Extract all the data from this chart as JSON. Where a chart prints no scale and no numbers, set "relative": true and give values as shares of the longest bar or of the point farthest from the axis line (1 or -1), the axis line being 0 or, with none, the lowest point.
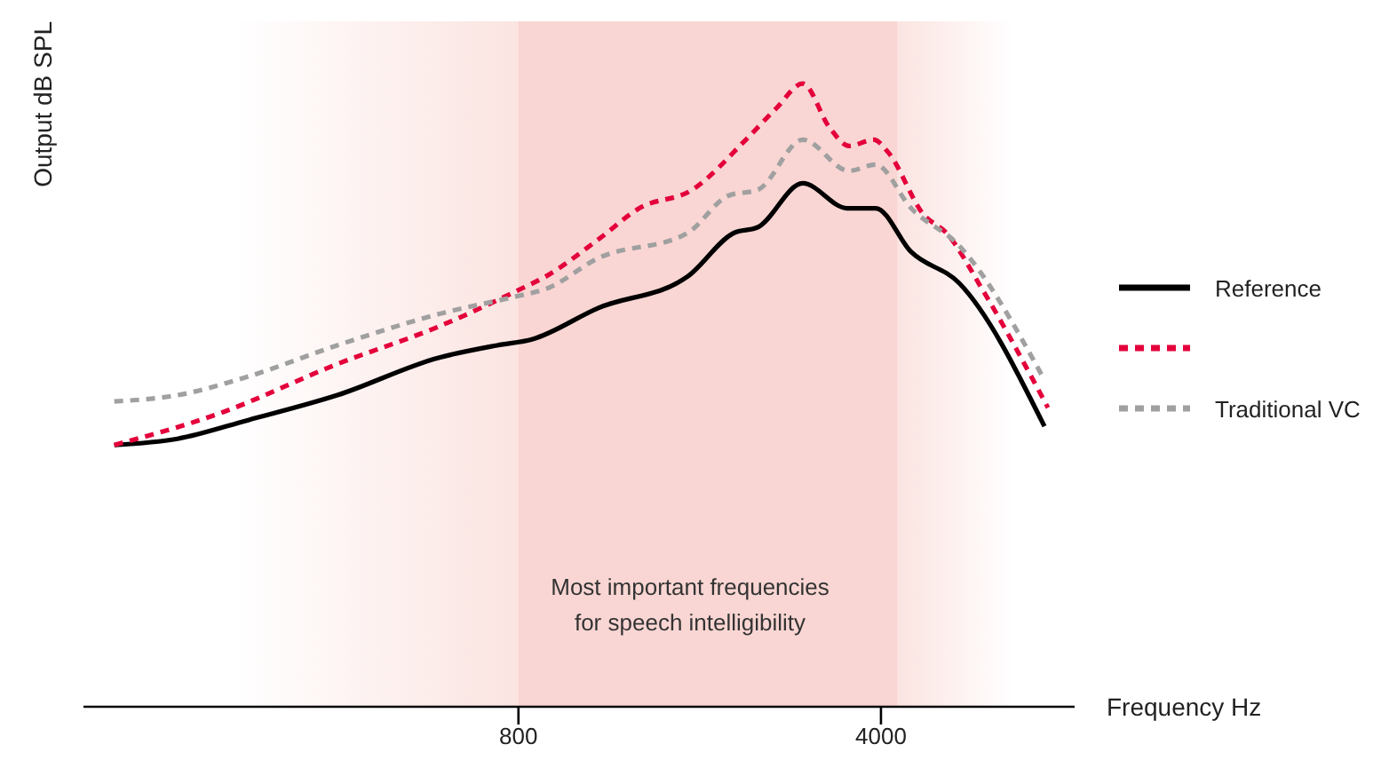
{
  "chart_data": {
    "type": "line",
    "xlabel": "Frequency Hz",
    "ylabel": "Output dB SPL",
    "relative": true,
    "log": "x",
    "xlim": [
      116,
      9450
    ],
    "xticks": [
      800,
      4000
    ],
    "legend": "right",
    "bands": [
      {
        "axis": "x",
        "from": 226,
        "to": 7200,
        "color": "#fbe4e1"
      },
      {
        "axis": "x",
        "from": 800,
        "to": 4300,
        "label": "Most important frequencies for speech intelligibility",
        "color": "#f9d6d3"
      }
    ],
    "series": [
      {
        "name": "Reference",
        "color": "#000000",
        "line_style": "solid",
        "x": [
          133,
          176,
          241,
          358,
          561,
          728,
          852,
          1141,
          1693,
          2078,
          2321,
          2827,
          3442,
          3906,
          4573,
          5658,
          8265
        ],
        "values": [
          0.42,
          0.43,
          0.46,
          0.5,
          0.56,
          0.58,
          0.59,
          0.64,
          0.69,
          0.76,
          0.77,
          0.84,
          0.8,
          0.8,
          0.73,
          0.68,
          0.45
        ]
      },
      {
        "color": "#e4003a",
        "line_style": "dashed",
        "x": [
          133,
          211,
          358,
          561,
          806,
          901,
          1141,
          1368,
          1734,
          2196,
          2511,
          2827,
          3181,
          3470,
          3876,
          4128,
          4832,
          5354,
          6270,
          8394
        ],
        "values": [
          0.42,
          0.47,
          0.55,
          0.61,
          0.67,
          0.69,
          0.75,
          0.8,
          0.83,
          0.91,
          0.96,
          1.0,
          0.93,
          0.9,
          0.91,
          0.89,
          0.79,
          0.76,
          0.67,
          0.48
        ]
      },
      {
        "name": "Traditional VC",
        "color": "#a0a0a0",
        "line_style": "dashed",
        "x": [
          133,
          176,
          241,
          358,
          561,
          806,
          901,
          1141,
          1693,
          2030,
          2321,
          2827,
          3470,
          3906,
          4573,
          5658,
          8196
        ],
        "values": [
          0.49,
          0.5,
          0.53,
          0.58,
          0.63,
          0.66,
          0.67,
          0.72,
          0.76,
          0.82,
          0.83,
          0.91,
          0.86,
          0.87,
          0.8,
          0.74,
          0.53
        ]
      }
    ]
  }
}
